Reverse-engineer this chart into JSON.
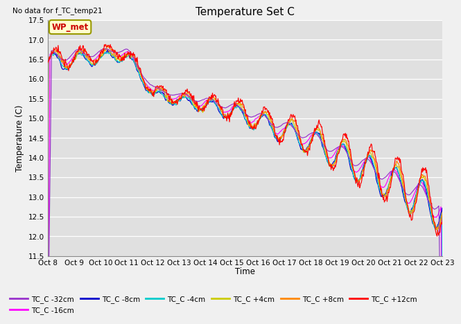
{
  "title": "Temperature Set C",
  "subtitle": "No data for f_TC_temp21",
  "xlabel": "Time",
  "ylabel": "Temperature (C)",
  "ylim": [
    11.5,
    17.5
  ],
  "yticks": [
    11.5,
    12.0,
    12.5,
    13.0,
    13.5,
    14.0,
    14.5,
    15.0,
    15.5,
    16.0,
    16.5,
    17.0,
    17.5
  ],
  "x_tick_labels": [
    "Oct 8",
    "Oct 9",
    "Oct 10",
    "Oct 11",
    "Oct 12",
    "Oct 13",
    "Oct 14",
    "Oct 15",
    "Oct 16",
    "Oct 17",
    "Oct 18",
    "Oct 19",
    "Oct 20",
    "Oct 21",
    "Oct 22",
    "Oct 23"
  ],
  "wp_met_label": "WP_met",
  "series_labels": [
    "TC_C -32cm",
    "TC_C -16cm",
    "TC_C -8cm",
    "TC_C -4cm",
    "TC_C +4cm",
    "TC_C +8cm",
    "TC_C +12cm"
  ],
  "series_colors": [
    "#9933cc",
    "#ff00ff",
    "#0000cc",
    "#00cccc",
    "#cccc00",
    "#ff8800",
    "#ff0000"
  ],
  "bg_color": "#e0e0e0",
  "grid_color": "#ffffff",
  "fig_bg": "#f0f0f0",
  "n_points": 720
}
